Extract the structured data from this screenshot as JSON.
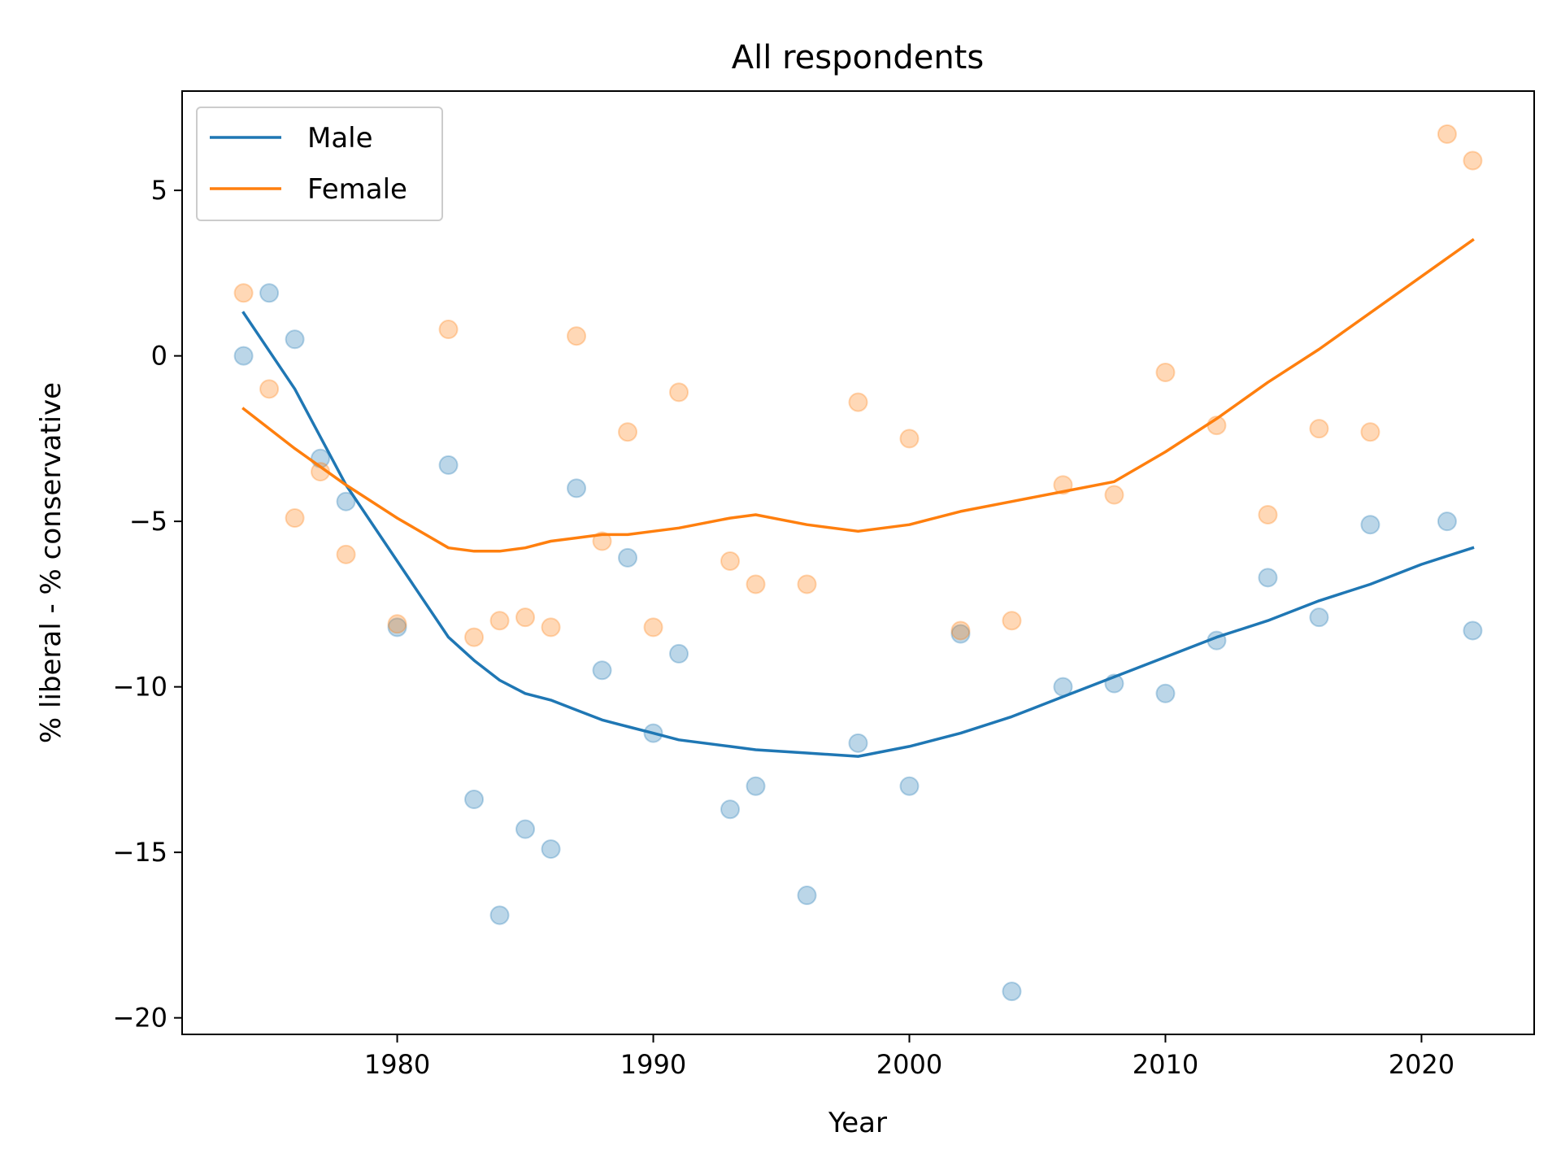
{
  "chart_data": {
    "type": "scatter",
    "title": "All respondents",
    "xlabel": "Year",
    "ylabel": "% liberal - % conservative",
    "xlim": [
      1971.6,
      2024.4
    ],
    "ylim": [
      -20.5,
      8.0
    ],
    "xticks": [
      1980,
      1990,
      2000,
      2010,
      2020
    ],
    "yticks": [
      5,
      0,
      -5,
      -10,
      -15,
      -20
    ],
    "ytick_labels": [
      "5",
      "0",
      "−5",
      "−10",
      "−15",
      "−20"
    ],
    "legend": {
      "position": "top-left"
    },
    "grid": false,
    "series": [
      {
        "name": "Male",
        "color": "#1f77b4",
        "points": [
          [
            1974,
            0.0
          ],
          [
            1975,
            1.9
          ],
          [
            1976,
            0.5
          ],
          [
            1977,
            -3.1
          ],
          [
            1978,
            -4.4
          ],
          [
            1980,
            -8.2
          ],
          [
            1982,
            -3.3
          ],
          [
            1983,
            -13.4
          ],
          [
            1984,
            -16.9
          ],
          [
            1985,
            -14.3
          ],
          [
            1986,
            -14.9
          ],
          [
            1987,
            -4.0
          ],
          [
            1988,
            -9.5
          ],
          [
            1989,
            -6.1
          ],
          [
            1990,
            -11.4
          ],
          [
            1991,
            -9.0
          ],
          [
            1993,
            -13.7
          ],
          [
            1994,
            -13.0
          ],
          [
            1996,
            -16.3
          ],
          [
            1998,
            -11.7
          ],
          [
            2000,
            -13.0
          ],
          [
            2002,
            -8.4
          ],
          [
            2004,
            -19.2
          ],
          [
            2006,
            -10.0
          ],
          [
            2008,
            -9.9
          ],
          [
            2010,
            -10.2
          ],
          [
            2012,
            -8.6
          ],
          [
            2014,
            -6.7
          ],
          [
            2016,
            -7.9
          ],
          [
            2018,
            -5.1
          ],
          [
            2021,
            -5.0
          ],
          [
            2022,
            -8.3
          ]
        ],
        "trend": [
          [
            1974,
            1.3
          ],
          [
            1976,
            -1.0
          ],
          [
            1978,
            -3.9
          ],
          [
            1980,
            -6.2
          ],
          [
            1982,
            -8.5
          ],
          [
            1983,
            -9.2
          ],
          [
            1984,
            -9.8
          ],
          [
            1985,
            -10.2
          ],
          [
            1986,
            -10.4
          ],
          [
            1987,
            -10.7
          ],
          [
            1988,
            -11.0
          ],
          [
            1989,
            -11.2
          ],
          [
            1990,
            -11.4
          ],
          [
            1991,
            -11.6
          ],
          [
            1993,
            -11.8
          ],
          [
            1994,
            -11.9
          ],
          [
            1996,
            -12.0
          ],
          [
            1998,
            -12.1
          ],
          [
            2000,
            -11.8
          ],
          [
            2002,
            -11.4
          ],
          [
            2004,
            -10.9
          ],
          [
            2006,
            -10.3
          ],
          [
            2008,
            -9.7
          ],
          [
            2010,
            -9.1
          ],
          [
            2012,
            -8.5
          ],
          [
            2014,
            -8.0
          ],
          [
            2016,
            -7.4
          ],
          [
            2018,
            -6.9
          ],
          [
            2020,
            -6.3
          ],
          [
            2022,
            -5.8
          ]
        ]
      },
      {
        "name": "Female",
        "color": "#ff7f0e",
        "points": [
          [
            1974,
            1.9
          ],
          [
            1975,
            -1.0
          ],
          [
            1976,
            -4.9
          ],
          [
            1977,
            -3.5
          ],
          [
            1978,
            -6.0
          ],
          [
            1980,
            -8.1
          ],
          [
            1982,
            0.8
          ],
          [
            1983,
            -8.5
          ],
          [
            1984,
            -8.0
          ],
          [
            1985,
            -7.9
          ],
          [
            1986,
            -8.2
          ],
          [
            1987,
            0.6
          ],
          [
            1988,
            -5.6
          ],
          [
            1989,
            -2.3
          ],
          [
            1990,
            -8.2
          ],
          [
            1991,
            -1.1
          ],
          [
            1993,
            -6.2
          ],
          [
            1994,
            -6.9
          ],
          [
            1996,
            -6.9
          ],
          [
            1998,
            -1.4
          ],
          [
            2000,
            -2.5
          ],
          [
            2002,
            -8.3
          ],
          [
            2004,
            -8.0
          ],
          [
            2006,
            -3.9
          ],
          [
            2008,
            -4.2
          ],
          [
            2010,
            -0.5
          ],
          [
            2012,
            -2.1
          ],
          [
            2014,
            -4.8
          ],
          [
            2016,
            -2.2
          ],
          [
            2018,
            -2.3
          ],
          [
            2021,
            6.7
          ],
          [
            2022,
            5.9
          ]
        ],
        "trend": [
          [
            1974,
            -1.6
          ],
          [
            1976,
            -2.8
          ],
          [
            1978,
            -3.9
          ],
          [
            1980,
            -4.9
          ],
          [
            1982,
            -5.8
          ],
          [
            1983,
            -5.9
          ],
          [
            1984,
            -5.9
          ],
          [
            1985,
            -5.8
          ],
          [
            1986,
            -5.6
          ],
          [
            1987,
            -5.5
          ],
          [
            1988,
            -5.4
          ],
          [
            1989,
            -5.4
          ],
          [
            1990,
            -5.3
          ],
          [
            1991,
            -5.2
          ],
          [
            1993,
            -4.9
          ],
          [
            1994,
            -4.8
          ],
          [
            1996,
            -5.1
          ],
          [
            1998,
            -5.3
          ],
          [
            2000,
            -5.1
          ],
          [
            2002,
            -4.7
          ],
          [
            2004,
            -4.4
          ],
          [
            2006,
            -4.1
          ],
          [
            2008,
            -3.8
          ],
          [
            2010,
            -2.9
          ],
          [
            2012,
            -1.9
          ],
          [
            2014,
            -0.8
          ],
          [
            2016,
            0.2
          ],
          [
            2018,
            1.3
          ],
          [
            2020,
            2.4
          ],
          [
            2022,
            3.5
          ]
        ]
      }
    ]
  }
}
